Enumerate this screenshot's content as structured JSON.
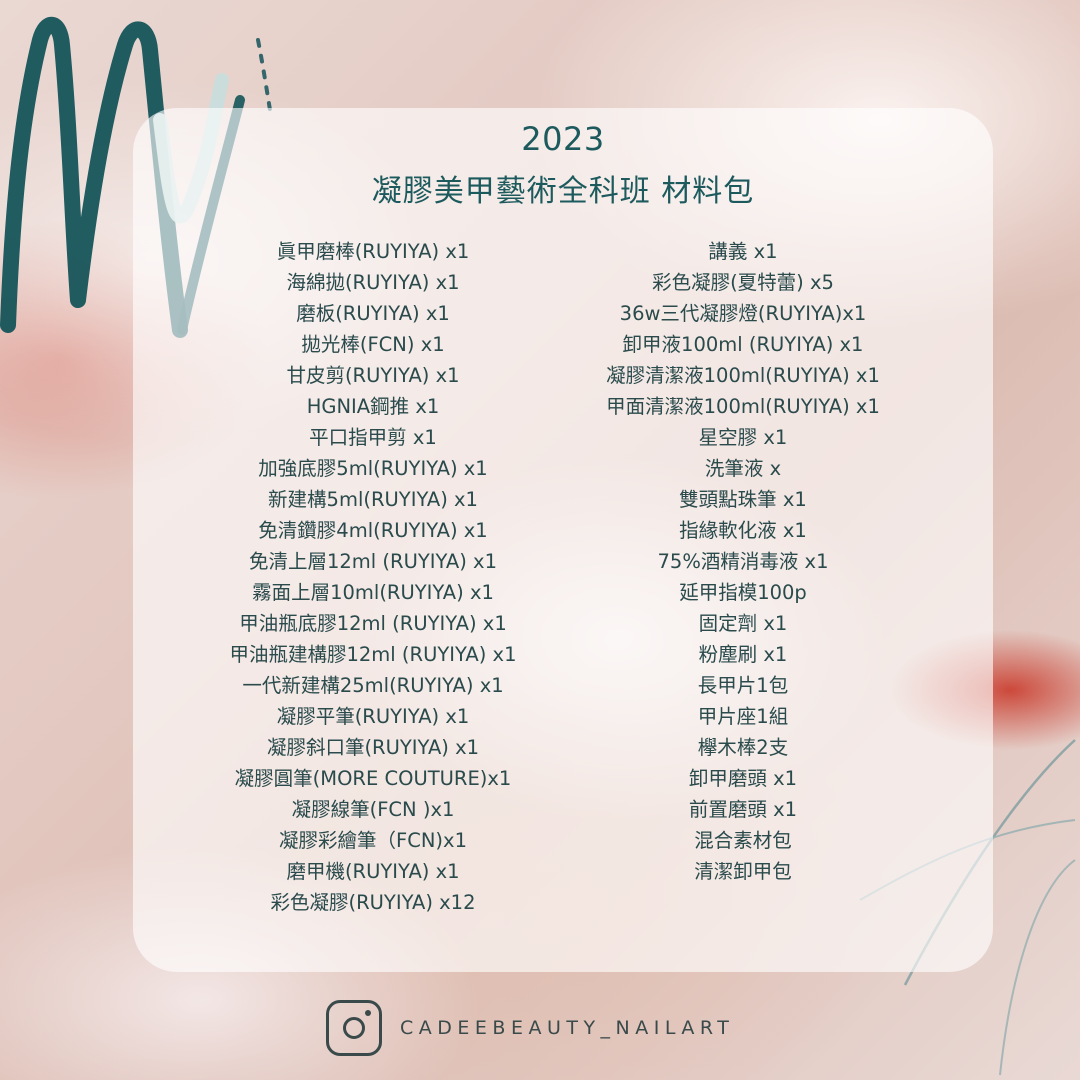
{
  "colors": {
    "accent_teal": "#1d5a5d",
    "text": "#2a4a4c",
    "footer": "#3a4a4b"
  },
  "title": {
    "year": "2023",
    "main": "凝膠美甲藝術全科班 材料包"
  },
  "items_left": [
    "眞甲磨棒(RUYIYA) x1",
    "海綿拋(RUYIYA) x1",
    "磨板(RUYIYA) x1",
    "拋光棒(FCN) x1",
    "甘皮剪(RUYIYA) x1",
    "HGNIA鋼推 x1",
    "平口指甲剪 x1",
    "加強底膠5ml(RUYIYA) x1",
    "新建構5ml(RUYIYA) x1",
    "免清鑽膠4ml(RUYIYA) x1",
    "免清上層12ml (RUYIYA) x1",
    "霧面上層10ml(RUYIYA) x1",
    "甲油瓶底膠12ml (RUYIYA) x1",
    "甲油瓶建構膠12ml (RUYIYA) x1",
    "一代新建構25ml(RUYIYA) x1",
    "凝膠平筆(RUYIYA) x1",
    "凝膠斜口筆(RUYIYA) x1",
    "凝膠圓筆(MORE COUTURE)x1",
    "凝膠線筆(FCN )x1",
    "凝膠彩繪筆（FCN)x1",
    "磨甲機(RUYIYA) x1",
    "彩色凝膠(RUYIYA) x12"
  ],
  "items_right": [
    "講義 x1",
    "彩色凝膠(夏特蕾) x5",
    "36w三代凝膠燈(RUYIYA)x1",
    "卸甲液100ml (RUYIYA) x1",
    "凝膠清潔液100ml(RUYIYA) x1",
    "甲面清潔液100ml(RUYIYA) x1",
    "星空膠 x1",
    "洗筆液 x",
    "雙頭點珠筆 x1",
    "指緣軟化液 x1",
    "75%酒精消毒液 x1",
    "延甲指模100p",
    "固定劑 x1",
    "粉塵刷 x1",
    "長甲片1包",
    "甲片座1組",
    "欅木棒2支",
    "卸甲磨頭 x1",
    "前置磨頭 x1",
    "混合素材包",
    "清潔卸甲包"
  ],
  "footer": {
    "icon": "instagram-icon",
    "handle": "CADEEBEAUTY_NAILART"
  }
}
